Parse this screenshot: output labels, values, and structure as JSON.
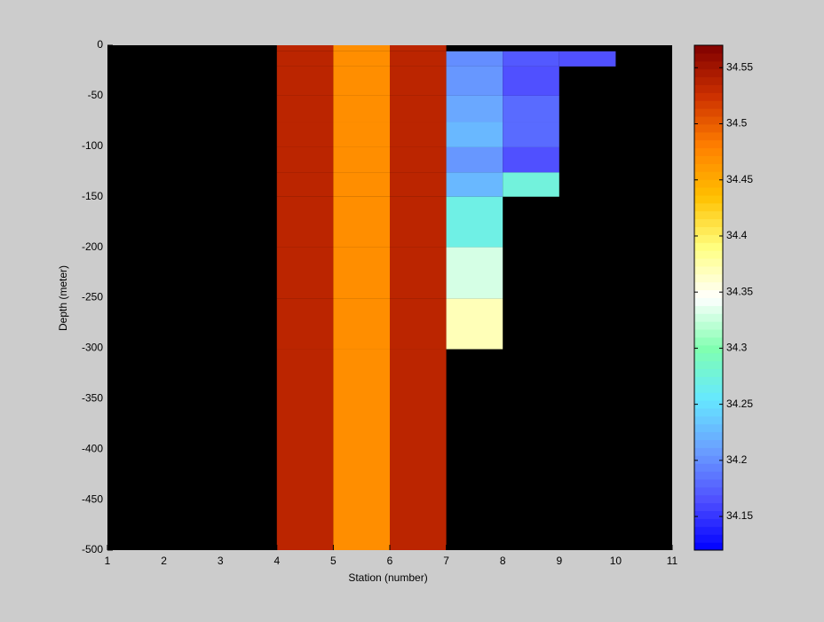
{
  "chart_data": {
    "type": "heatmap",
    "xlabel": "Station (number)",
    "ylabel": "Depth (meter)",
    "x_edges": [
      1,
      2,
      3,
      4,
      5,
      6,
      7,
      8,
      9,
      10,
      11
    ],
    "y_edges": [
      0,
      -6,
      -21,
      -50,
      -76,
      -101,
      -126,
      -150,
      -200,
      -251,
      -301,
      -500
    ],
    "values": [
      [
        null,
        null,
        null,
        34.535,
        34.47,
        34.535,
        null,
        null,
        null,
        null
      ],
      [
        null,
        null,
        null,
        34.535,
        34.47,
        34.535,
        34.2,
        34.17,
        34.165,
        null
      ],
      [
        null,
        null,
        null,
        34.535,
        34.47,
        34.535,
        34.205,
        34.165,
        null,
        null
      ],
      [
        null,
        null,
        null,
        34.535,
        34.47,
        34.535,
        34.215,
        34.18,
        null,
        null
      ],
      [
        null,
        null,
        null,
        34.535,
        34.47,
        34.535,
        34.225,
        34.18,
        null,
        null
      ],
      [
        null,
        null,
        null,
        34.535,
        34.47,
        34.535,
        34.205,
        34.165,
        null,
        null
      ],
      [
        null,
        null,
        null,
        34.535,
        34.47,
        34.535,
        34.225,
        34.275,
        null,
        null
      ],
      [
        null,
        null,
        null,
        34.535,
        34.47,
        34.535,
        34.27,
        null,
        null,
        null
      ],
      [
        null,
        null,
        null,
        34.535,
        34.47,
        34.535,
        34.33,
        null,
        null,
        null
      ],
      [
        null,
        null,
        null,
        34.535,
        34.47,
        34.535,
        34.37,
        null,
        null,
        null
      ],
      [
        null,
        null,
        null,
        34.535,
        34.47,
        34.535,
        null,
        null,
        null,
        null
      ]
    ],
    "xlim": [
      1,
      11
    ],
    "xticks": [
      1,
      2,
      3,
      4,
      5,
      6,
      7,
      8,
      9,
      10,
      11
    ],
    "ylim": [
      -500,
      0
    ],
    "yticks": [
      0,
      -50,
      -100,
      -150,
      -200,
      -250,
      -300,
      -350,
      -400,
      -450,
      -500
    ],
    "clim": [
      34.12,
      34.57
    ],
    "cticks": [
      34.15,
      34.2,
      34.25,
      34.3,
      34.35,
      34.4,
      34.45,
      34.5,
      34.55
    ],
    "colormap": [
      "#0000ff",
      "#5050ff",
      "#6aa0ff",
      "#66e8ff",
      "#80ffb0",
      "#ffffff",
      "#ffff80",
      "#ffc000",
      "#ff8000",
      "#cc3000",
      "#800000"
    ],
    "nan_color": "#000000"
  }
}
